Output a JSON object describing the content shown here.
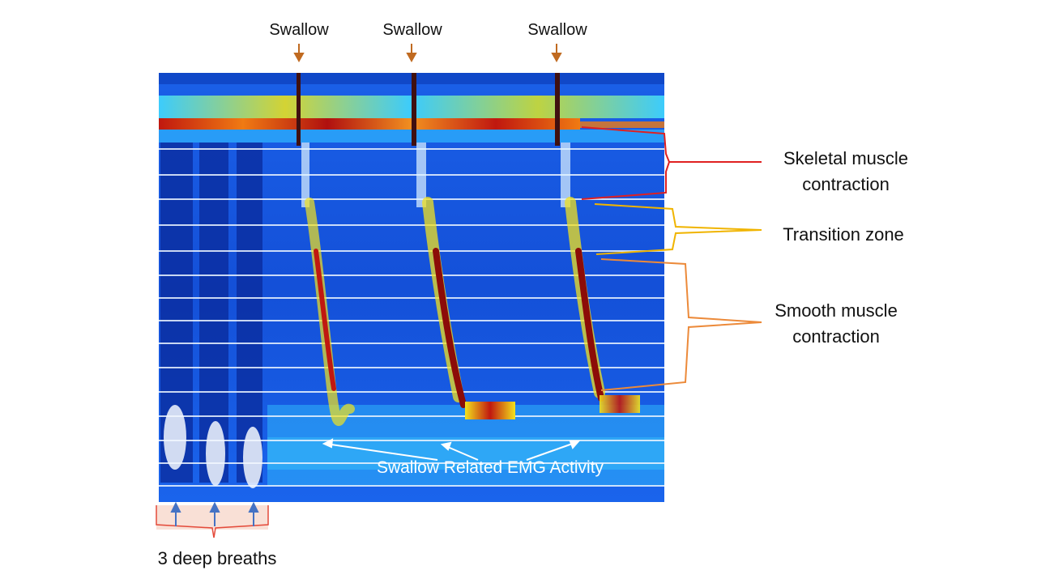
{
  "swallow_labels": [
    "Swallow",
    "Swallow",
    "Swallow"
  ],
  "annotations": {
    "skeletal": [
      "Skeletal muscle",
      "contraction"
    ],
    "transition": "Transition zone",
    "smooth": [
      "Smooth muscle",
      "contraction"
    ],
    "emg": "Swallow Related EMG Activity",
    "breaths": "3 deep breaths"
  },
  "colors": {
    "background_blue": "#1556e0",
    "deep_blue": "#0a2a9a",
    "cyan": "#2fd3ff",
    "yellow": "#f2e21c",
    "orange": "#f07a12",
    "dark_red": "#8c0c08",
    "skeletal_bracket": "#e02020",
    "transition_bracket": "#f0b400",
    "smooth_bracket": "#ec8a3a",
    "swallow_arrow": "#c06a20",
    "breath_arrow": "#4472c4",
    "breath_box": "#f8d8cc"
  }
}
